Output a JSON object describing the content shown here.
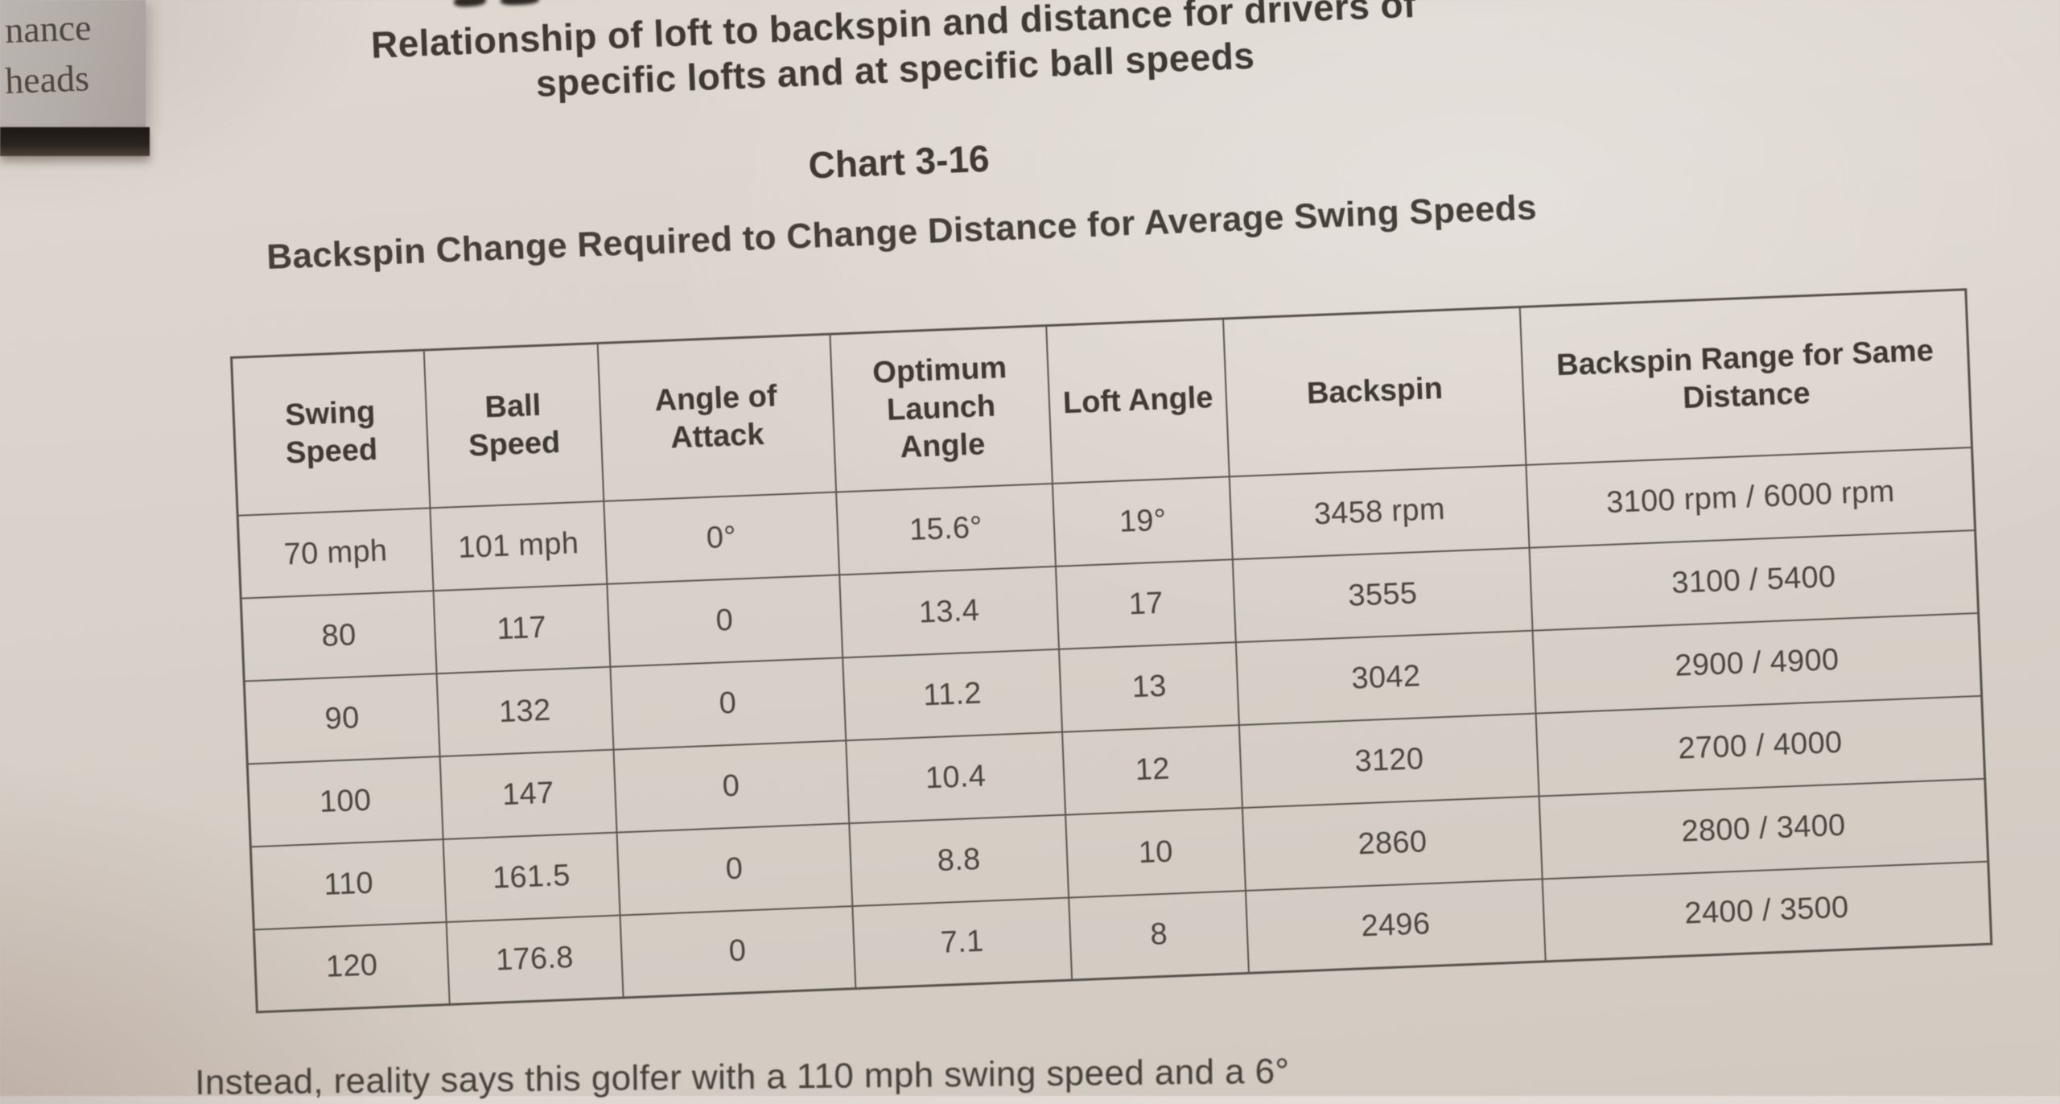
{
  "page": {
    "margin_tab": {
      "line1": "nance",
      "line2": "heads"
    },
    "title": {
      "line1": "Relationship of loft to backspin and distance for drivers of",
      "line2": "specific lofts and at specific ball speeds",
      "chart_label": "Chart 3-16",
      "subtitle": "Backspin Change Required to Change Distance for Average Swing Speeds"
    },
    "table": {
      "columns": [
        "Swing Speed",
        "Ball Speed",
        "Angle of Attack",
        "Optimum Launch Angle",
        "Loft Angle",
        "Backspin",
        "Backspin Range for Same Distance"
      ],
      "rows": [
        [
          "70 mph",
          "101 mph",
          "0°",
          "15.6°",
          "19°",
          "3458 rpm",
          "3100 rpm / 6000 rpm"
        ],
        [
          "80",
          "117",
          "0",
          "13.4",
          "17",
          "3555",
          "3100 / 5400"
        ],
        [
          "90",
          "132",
          "0",
          "11.2",
          "13",
          "3042",
          "2900 / 4900"
        ],
        [
          "100",
          "147",
          "0",
          "10.4",
          "12",
          "3120",
          "2700 / 4000"
        ],
        [
          "110",
          "161.5",
          "0",
          "8.8",
          "10",
          "2860",
          "2800 / 3400"
        ],
        [
          "120",
          "176.8",
          "0",
          "7.1",
          "8",
          "2496",
          "2400 / 3500"
        ]
      ]
    },
    "bottom_text": "Instead, reality says this golfer with a 110 mph swing speed and a 6°",
    "colors": {
      "page_background": "#d9d2ca",
      "ink": "#3f3a34",
      "table_border": "#57524b",
      "tab_background": "#b2aca7",
      "tab_band": "#1d1815"
    }
  }
}
